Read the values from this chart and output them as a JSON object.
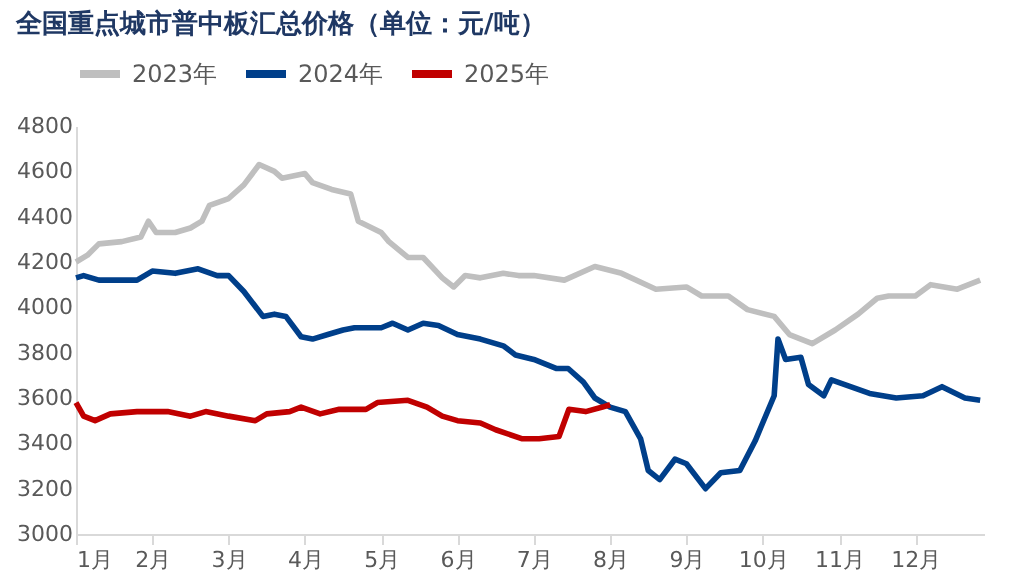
{
  "chart_data": {
    "type": "line",
    "title": "全国重点城市普中板汇总价格（单位：元/吨）",
    "xlim": [
      1,
      12.9
    ],
    "xticks": [
      {
        "value": 1,
        "label": "1月"
      },
      {
        "value": 2,
        "label": "2月"
      },
      {
        "value": 3,
        "label": "3月"
      },
      {
        "value": 4,
        "label": "4月"
      },
      {
        "value": 5,
        "label": "5月"
      },
      {
        "value": 6,
        "label": "6月"
      },
      {
        "value": 7,
        "label": "7月"
      },
      {
        "value": 8,
        "label": "8月"
      },
      {
        "value": 9,
        "label": "9月"
      },
      {
        "value": 10,
        "label": "10月"
      },
      {
        "value": 11,
        "label": "11月"
      },
      {
        "value": 12,
        "label": "12月"
      }
    ],
    "ylim": [
      3000,
      4800
    ],
    "yticks": [
      3000,
      3200,
      3400,
      3600,
      3800,
      4000,
      4200,
      4400,
      4600,
      4800
    ],
    "grid": false,
    "legend": "top",
    "marker": "none",
    "line_style": "solid",
    "series": [
      {
        "name": "2023年",
        "color": "#bfbfbf",
        "x": [
          1.0,
          1.15,
          1.3,
          1.6,
          1.85,
          1.95,
          2.05,
          2.3,
          2.5,
          2.65,
          2.75,
          3.0,
          3.2,
          3.4,
          3.6,
          3.7,
          4.0,
          4.1,
          4.35,
          4.6,
          4.7,
          5.0,
          5.1,
          5.35,
          5.55,
          5.8,
          5.95,
          6.1,
          6.3,
          6.6,
          6.8,
          7.0,
          7.4,
          7.8,
          8.15,
          8.6,
          9.0,
          9.2,
          9.55,
          9.8,
          10.15,
          10.35,
          10.65,
          10.95,
          11.25,
          11.5,
          11.65,
          12.0,
          12.2,
          12.55,
          12.85
        ],
        "values": [
          4200,
          4230,
          4280,
          4290,
          4310,
          4380,
          4330,
          4330,
          4350,
          4380,
          4450,
          4480,
          4540,
          4630,
          4600,
          4570,
          4590,
          4550,
          4520,
          4500,
          4380,
          4330,
          4290,
          4220,
          4220,
          4130,
          4090,
          4140,
          4130,
          4150,
          4140,
          4140,
          4120,
          4180,
          4150,
          4080,
          4090,
          4050,
          4050,
          3990,
          3960,
          3880,
          3840,
          3900,
          3970,
          4040,
          4050,
          4050,
          4100,
          4080,
          4120
        ]
      },
      {
        "name": "2024年",
        "color": "#003f8a",
        "x": [
          1.0,
          1.1,
          1.3,
          1.8,
          2.0,
          2.3,
          2.6,
          2.85,
          3.0,
          3.2,
          3.45,
          3.6,
          3.75,
          3.95,
          4.1,
          4.3,
          4.5,
          4.65,
          5.0,
          5.15,
          5.35,
          5.55,
          5.75,
          6.0,
          6.3,
          6.6,
          6.76,
          7.0,
          7.3,
          7.45,
          7.65,
          7.8,
          8.0,
          8.2,
          8.4,
          8.5,
          8.65,
          8.85,
          9.0,
          9.25,
          9.45,
          9.7,
          9.9,
          10.15,
          10.2,
          10.3,
          10.5,
          10.6,
          10.8,
          10.9,
          11.15,
          11.4,
          11.75,
          12.1,
          12.35,
          12.65,
          12.85
        ],
        "values": [
          4130,
          4140,
          4120,
          4120,
          4160,
          4150,
          4170,
          4140,
          4140,
          4070,
          3960,
          3970,
          3960,
          3870,
          3860,
          3880,
          3900,
          3910,
          3910,
          3930,
          3900,
          3930,
          3920,
          3880,
          3860,
          3830,
          3790,
          3770,
          3730,
          3730,
          3670,
          3600,
          3560,
          3540,
          3420,
          3280,
          3240,
          3330,
          3310,
          3200,
          3270,
          3280,
          3410,
          3610,
          3860,
          3770,
          3780,
          3660,
          3610,
          3680,
          3650,
          3620,
          3600,
          3610,
          3650,
          3600,
          3590
        ]
      },
      {
        "name": "2025年",
        "color": "#c00000",
        "x": [
          1.0,
          1.1,
          1.25,
          1.45,
          1.8,
          2.2,
          2.5,
          2.7,
          3.0,
          3.35,
          3.5,
          3.8,
          3.95,
          4.2,
          4.45,
          4.8,
          4.95,
          5.35,
          5.6,
          5.8,
          6.0,
          6.3,
          6.5,
          6.85,
          7.07,
          7.33,
          7.46,
          7.68,
          7.9,
          8.0
        ],
        "values": [
          3580,
          3520,
          3500,
          3530,
          3540,
          3540,
          3520,
          3540,
          3520,
          3500,
          3530,
          3540,
          3560,
          3530,
          3550,
          3550,
          3580,
          3590,
          3560,
          3520,
          3500,
          3490,
          3460,
          3420,
          3420,
          3430,
          3550,
          3540,
          3560,
          3570
        ]
      }
    ]
  }
}
